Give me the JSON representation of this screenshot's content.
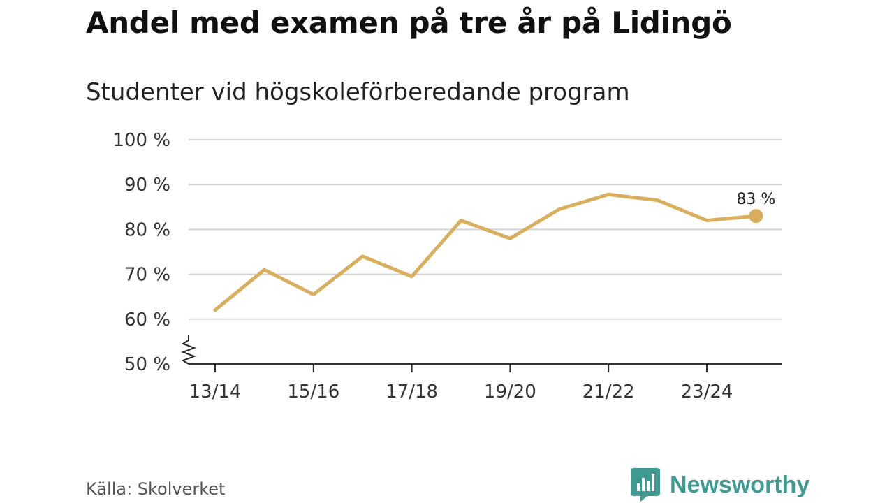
{
  "header": {
    "title": "Andel med examen på tre år på Lidingö",
    "subtitle": "Studenter vid högskoleförberedande program"
  },
  "chart_data": {
    "type": "line",
    "title": "Andel med examen på tre år på Lidingö",
    "subtitle": "Studenter vid högskoleförberedande program",
    "xlabel": "",
    "ylabel": "",
    "x": [
      "13/14",
      "14/15",
      "15/16",
      "16/17",
      "17/18",
      "18/19",
      "19/20",
      "20/21",
      "21/22",
      "22/23",
      "23/24",
      "24/25"
    ],
    "x_tick_labels": [
      "13/14",
      "15/16",
      "17/18",
      "19/20",
      "21/22",
      "23/24"
    ],
    "series": [
      {
        "name": "Andel med examen",
        "values": [
          62,
          71,
          65.5,
          74,
          69.5,
          82,
          78,
          84.5,
          87.8,
          86.5,
          82,
          83
        ]
      }
    ],
    "ylim": [
      50,
      100
    ],
    "yticks": [
      50,
      60,
      70,
      80,
      90,
      100
    ],
    "y_tick_labels": [
      "50 %",
      "60 %",
      "70 %",
      "80 %",
      "90 %",
      "100 %"
    ],
    "axis_break": true,
    "end_label": "83 %",
    "grid": true,
    "line_color": "#d9ae5c"
  },
  "footer": {
    "source": "Källa: Skolverket",
    "brand": "Newsworthy",
    "brand_color": "#3f9a91",
    "brand_icon": "newsworthy-logo-icon"
  }
}
